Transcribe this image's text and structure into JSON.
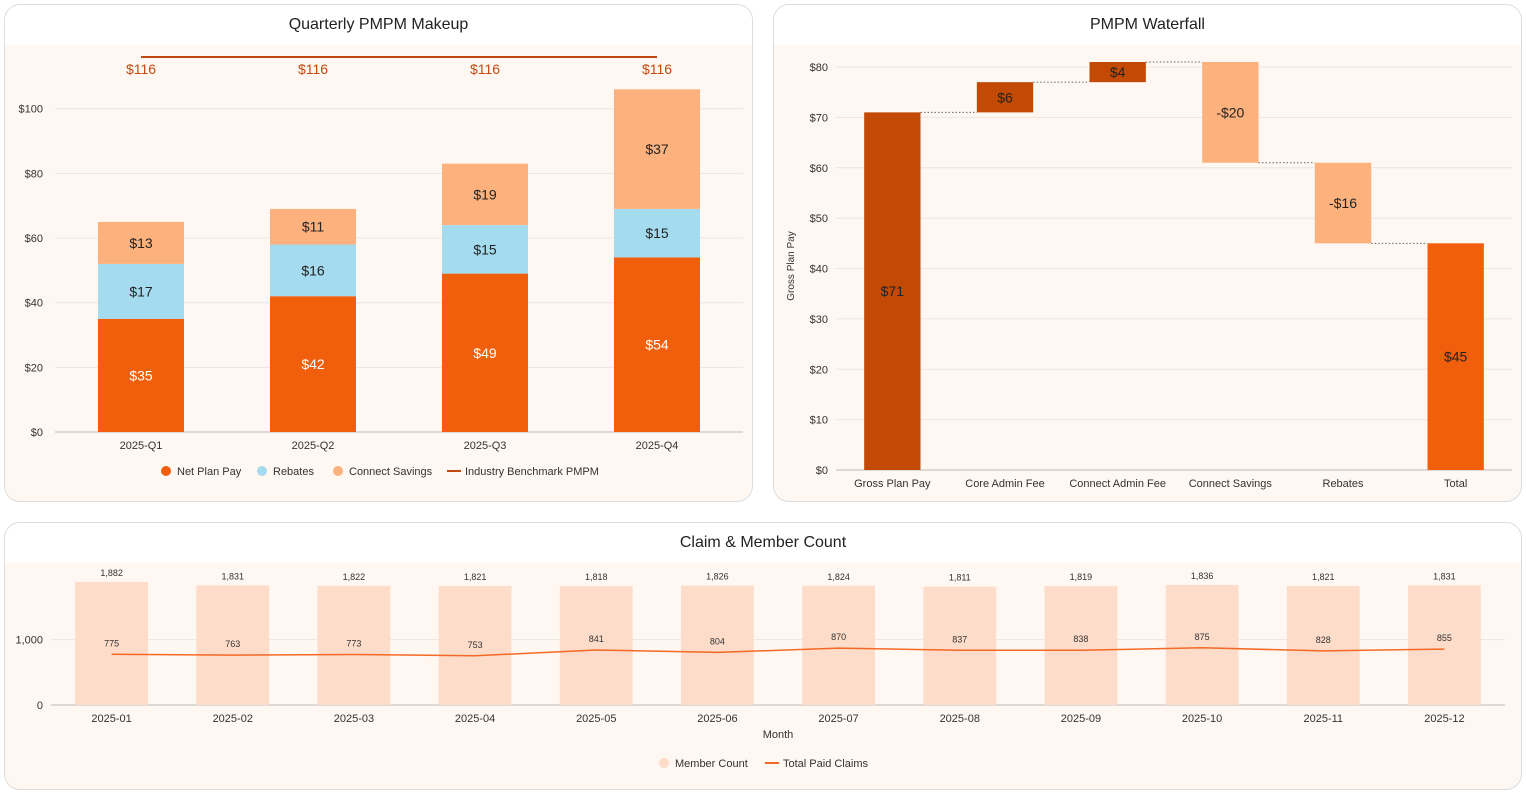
{
  "chart_data": [
    {
      "type": "bar",
      "stacked": true,
      "title": "Quarterly PMPM Makeup",
      "categories": [
        "2025-Q1",
        "2025-Q2",
        "2025-Q3",
        "2025-Q4"
      ],
      "series": [
        {
          "name": "Net Plan Pay",
          "values": [
            35,
            42,
            49,
            54
          ],
          "labels": [
            "$35",
            "$42",
            "$49",
            "$54"
          ],
          "color": "#f25f0c",
          "label_color": "#ffffff"
        },
        {
          "name": "Rebates",
          "values": [
            17,
            16,
            15,
            15
          ],
          "labels": [
            "$17",
            "$16",
            "$15",
            "$15"
          ],
          "color": "#a5dbef",
          "label_color": "#222222"
        },
        {
          "name": "Connect Savings",
          "values": [
            13,
            11,
            19,
            37
          ],
          "labels": [
            "$13",
            "$11",
            "$19",
            "$37"
          ],
          "color": "#fdb27e",
          "label_color": "#222222"
        }
      ],
      "benchmark": {
        "name": "Industry Benchmark PMPM",
        "value": 116,
        "labels": [
          "$116",
          "$116",
          "$116",
          "$116"
        ],
        "color": "#c24a10"
      },
      "ylim": [
        0,
        116
      ],
      "yticks": [
        0,
        20,
        40,
        60,
        80,
        100
      ],
      "ytick_labels": [
        "$0",
        "$20",
        "$40",
        "$60",
        "$80",
        "$100"
      ],
      "legend": [
        "Net Plan Pay",
        "Rebates",
        "Connect Savings",
        "Industry Benchmark PMPM"
      ],
      "legend_position": "bottom"
    },
    {
      "type": "bar",
      "subtype": "waterfall",
      "title": "PMPM Waterfall",
      "ylabel": "Gross Plan Pay",
      "categories": [
        "Gross Plan Pay",
        "Core Admin Fee",
        "Connect Admin Fee",
        "Connect Savings",
        "Rebates",
        "Total"
      ],
      "bars": [
        {
          "start": 0,
          "end": 71,
          "label": "$71",
          "color": "#c24a05"
        },
        {
          "start": 71,
          "end": 77,
          "label": "$6",
          "color": "#c24a05"
        },
        {
          "start": 77,
          "end": 81,
          "label": "$4",
          "color": "#c24a05"
        },
        {
          "start": 81,
          "end": 61,
          "label": "-$20",
          "color": "#fdb27e"
        },
        {
          "start": 61,
          "end": 45,
          "label": "-$16",
          "color": "#fdb27e"
        },
        {
          "start": 0,
          "end": 45,
          "label": "$45",
          "color": "#f25f0c"
        }
      ],
      "ylim": [
        0,
        81
      ],
      "yticks": [
        0,
        10,
        20,
        30,
        40,
        50,
        60,
        70,
        80
      ],
      "ytick_labels": [
        "$0",
        "$10",
        "$20",
        "$30",
        "$40",
        "$50",
        "$60",
        "$70",
        "$80"
      ]
    },
    {
      "type": "bar",
      "subtype": "bar_line_combo",
      "title": "Claim & Member Count",
      "xlabel": "Month",
      "categories": [
        "2025-01",
        "2025-02",
        "2025-03",
        "2025-04",
        "2025-05",
        "2025-06",
        "2025-07",
        "2025-08",
        "2025-09",
        "2025-10",
        "2025-11",
        "2025-12"
      ],
      "bar_series": {
        "name": "Member Count",
        "values": [
          1882,
          1831,
          1822,
          1821,
          1818,
          1826,
          1824,
          1811,
          1819,
          1836,
          1821,
          1831
        ],
        "labels": [
          "1,882",
          "1,831",
          "1,822",
          "1,821",
          "1,818",
          "1,826",
          "1,824",
          "1,811",
          "1,819",
          "1,836",
          "1,821",
          "1,831"
        ],
        "color": "#fddcc9"
      },
      "line_series": {
        "name": "Total Paid Claims",
        "values": [
          775,
          763,
          773,
          753,
          841,
          804,
          870,
          837,
          838,
          875,
          828,
          855
        ],
        "labels": [
          "775",
          "763",
          "773",
          "753",
          "841",
          "804",
          "870",
          "837",
          "838",
          "875",
          "828",
          "855"
        ],
        "color": "#f26a25"
      },
      "ylim": [
        0,
        2050
      ],
      "yticks": [
        0,
        1000
      ],
      "ytick_labels": [
        "0",
        "1,000"
      ],
      "legend": [
        "Member Count",
        "Total Paid Claims"
      ],
      "legend_position": "bottom"
    }
  ]
}
